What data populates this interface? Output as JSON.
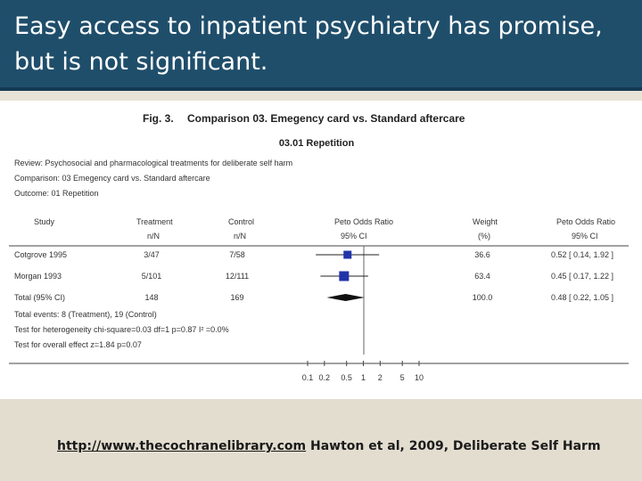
{
  "slide": {
    "title_line1": "Easy access to inpatient psychiatry has promise,",
    "title_line2": "but is not significant.",
    "footer_link": "http://www.thecochranelibrary.com",
    "footer_citation": " Hawton et al, 2009, Deliberate Self Harm"
  },
  "figure": {
    "fig_label": "Fig. 3.",
    "fig_title": "Comparison 03. Emegency card vs. Standard aftercare",
    "subtitle": "03.01 Repetition",
    "meta": {
      "review": "Review: Psychosocial and pharmacological treatments for deliberate self harm",
      "comparison": "Comparison: 03 Emegency card vs. Standard aftercare",
      "outcome": "Outcome: 01 Repetition"
    },
    "headers": {
      "study": "Study",
      "treatment": "Treatment",
      "treatment_sub": "n/N",
      "control": "Control",
      "control_sub": "n/N",
      "ratio": "Peto Odds Ratio",
      "ratio_sub": "95% CI",
      "weight": "Weight",
      "weight_sub": "(%)",
      "ratio2": "Peto Odds Ratio",
      "ratio2_sub": "95% CI"
    },
    "footnotes": {
      "total_events": "Total events: 8 (Treatment), 19 (Control)",
      "heterogeneity": "Test for heterogeneity chi-square=0.03 df=1 p=0.87 I² =0.0%",
      "overall": "Test for overall effect z=1.84 p=0.07"
    }
  },
  "chart_data": {
    "type": "forest",
    "scale": "log",
    "x_ticks": [
      0.1,
      0.2,
      0.5,
      1,
      2,
      5,
      10
    ],
    "x_tick_labels": [
      "0.1",
      "0.2",
      "0.5",
      "1",
      "2",
      "5",
      "10"
    ],
    "rows": [
      {
        "study": "Cotgrove 1995",
        "treatment": "3/47",
        "control": "7/58",
        "weight": "36.6",
        "ci_text": "0.52 [ 0.14, 1.92 ]",
        "or": 0.52,
        "lo": 0.14,
        "hi": 1.92,
        "marker": "square"
      },
      {
        "study": "Morgan 1993",
        "treatment": "5/101",
        "control": "12/111",
        "weight": "63.4",
        "ci_text": "0.45 [ 0.17, 1.22 ]",
        "or": 0.45,
        "lo": 0.17,
        "hi": 1.22,
        "marker": "square"
      },
      {
        "study": "Total (95% CI)",
        "treatment": "148",
        "control": "169",
        "weight": "100.0",
        "ci_text": "0.48 [ 0.22, 1.05 ]",
        "or": 0.48,
        "lo": 0.22,
        "hi": 1.05,
        "marker": "diamond"
      }
    ],
    "colors": {
      "marker": "#2233aa",
      "diamond": "#111111"
    }
  }
}
